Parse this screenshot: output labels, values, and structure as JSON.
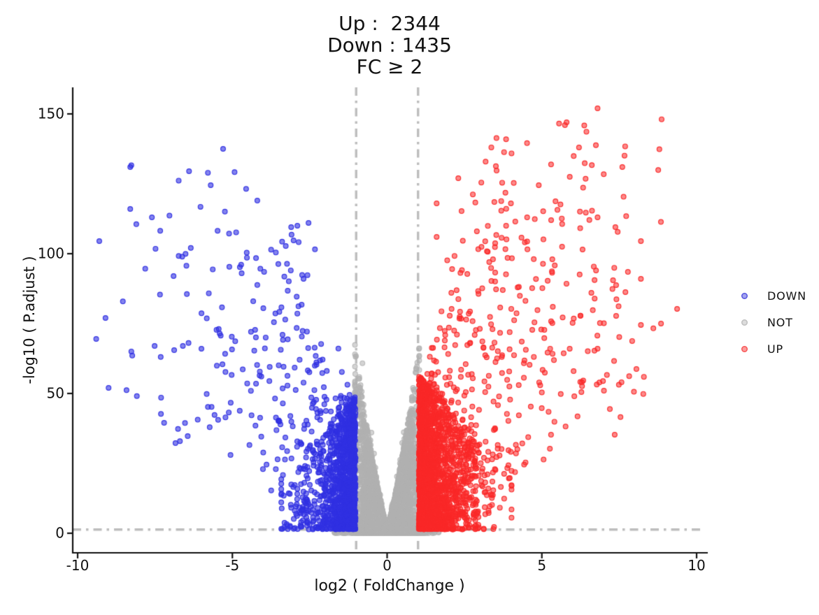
{
  "chart_data": {
    "type": "scatter",
    "subtype": "volcano-plot",
    "title": "Up :  2344\nDown : 1435\nFC ≥ 2",
    "title_lines": [
      "Up :  2344",
      "Down : 1435",
      "FC ≥ 2"
    ],
    "counts": {
      "up": 2344,
      "down": 1435
    },
    "fc_threshold_label": "FC ≥ 2",
    "xlabel": "log2 ( FoldChange )",
    "ylabel": "-log10 ( P.adjust )",
    "x_ticks": [
      -10,
      -5,
      0,
      5,
      10
    ],
    "y_ticks": [
      0,
      50,
      100,
      150
    ],
    "xlim": [
      -10.16,
      10.36
    ],
    "ylim": [
      -7,
      159.5
    ],
    "grid": false,
    "legend_position": "right",
    "thresholds": {
      "log2fc": [
        -1,
        1
      ],
      "neg_log10_padj": 1.3
    },
    "legend": [
      {
        "label": "DOWN",
        "fill": "#a3a3f0",
        "ring": "#5a5ae0"
      },
      {
        "label": "NOT",
        "fill": "#dcdcdc",
        "ring": "#c1c1c1"
      },
      {
        "label": "UP",
        "fill": "#fc9c9c",
        "ring": "#f85b5b"
      }
    ],
    "groups": {
      "down": {
        "count": 1435,
        "color": "#3030e2",
        "fill_alpha": 0.6,
        "edge_alpha": 0.95
      },
      "not": {
        "color": "#b1b1b1",
        "fill_alpha": 0.55,
        "edge_alpha": 0.8
      },
      "up": {
        "count": 2344,
        "color": "#fa2828",
        "fill_alpha": 0.55,
        "edge_alpha": 0.95
      }
    },
    "style": {
      "axis_color": "#111111",
      "threshold_line_color": "#bdbdbd",
      "marker_radius": 3.4
    },
    "simulation": {
      "seed": 13,
      "not": {
        "n": 9000,
        "x_sigma": 0.42,
        "x_max": 1.04,
        "env_base": 2.5,
        "env_gain": 62,
        "env_pow": 1.25,
        "y_bias": 1.25,
        "feet_frac": 0.1,
        "feet_sigma": 0.62,
        "feet_xmax": 1.7,
        "feet_ymax": 1.7,
        "over_frac": 0.025
      },
      "down": {
        "n": 1435,
        "bulk_frac": 0.72,
        "bulk_mean": 0.5,
        "bulk_cap": 2.4,
        "bulk_ymax": 48,
        "bulk_slope": 12,
        "y_bias": 1.55,
        "tail_reach": 8.5,
        "tail_pow": 2.0,
        "tail_ymax": 128,
        "outliers": [
          [
            -5.3,
            137.5
          ],
          [
            -8.3,
            131
          ],
          [
            -6.4,
            129.5
          ],
          [
            -5.7,
            124.5
          ],
          [
            -8.3,
            116
          ],
          [
            -7.6,
            113
          ],
          [
            -3.1,
            109.5
          ],
          [
            -2.9,
            110
          ],
          [
            -9.3,
            104.5
          ],
          [
            -4.7,
            93
          ],
          [
            -6.9,
            92
          ],
          [
            -2.7,
            91
          ],
          [
            -4.0,
            80.5
          ],
          [
            -9.1,
            77
          ],
          [
            -9.4,
            69.5
          ],
          [
            -6.6,
            67
          ],
          [
            -6.0,
            66
          ],
          [
            -9.0,
            52
          ]
        ]
      },
      "up": {
        "n": 2344,
        "bulk_frac": 0.7,
        "bulk_mean": 0.55,
        "bulk_cap": 3.0,
        "bulk_ymax": 55,
        "bulk_slope": 11,
        "y_bias": 1.45,
        "tail_reach": 8.6,
        "tail_pow": 2.0,
        "tail_ymax": 142,
        "outliers": [
          [
            6.8,
            152
          ],
          [
            5.8,
            147
          ],
          [
            6.2,
            138
          ],
          [
            7.6,
            131
          ],
          [
            4.9,
            124.5
          ],
          [
            2.3,
            127
          ],
          [
            1.6,
            118
          ],
          [
            4.0,
            118
          ],
          [
            5.3,
            112
          ],
          [
            6.8,
            113
          ],
          [
            8.2,
            104.5
          ],
          [
            6.75,
            94
          ],
          [
            7.3,
            90.5
          ],
          [
            7.4,
            88.75
          ],
          [
            7.7,
            86.25
          ],
          [
            6.6,
            86
          ],
          [
            9.37,
            80.25
          ],
          [
            7.4,
            77.75
          ],
          [
            6.8,
            66
          ],
          [
            2.9,
            108
          ],
          [
            1.6,
            106
          ],
          [
            3.3,
            97
          ],
          [
            2.1,
            94.5
          ],
          [
            8.2,
            91
          ],
          [
            5.9,
            66
          ],
          [
            8.85,
            75
          ],
          [
            8.2,
            74.5
          ]
        ]
      }
    }
  }
}
